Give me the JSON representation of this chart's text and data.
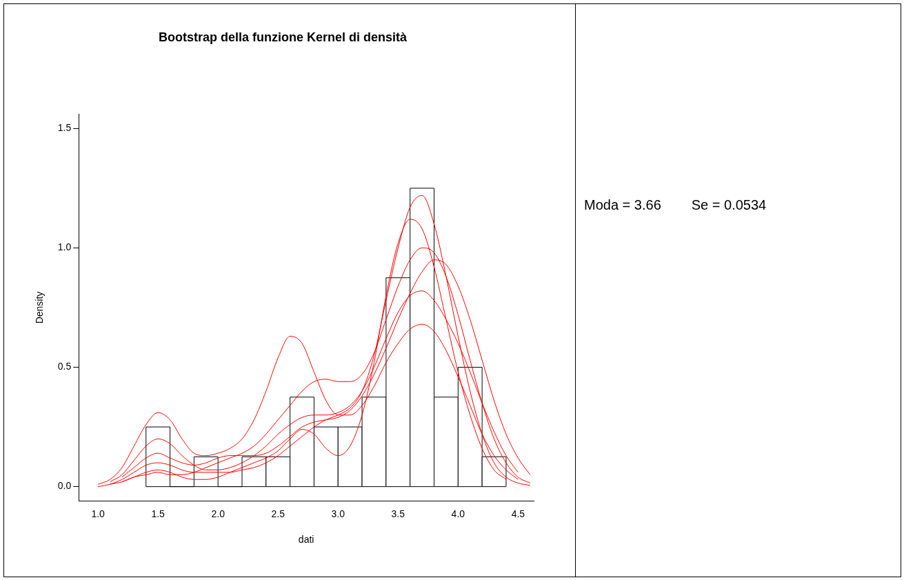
{
  "chart_data": {
    "type": "histogram",
    "title": "Bootstrap della funzione Kernel di densità",
    "xlabel": "dati",
    "ylabel": "Density",
    "bins": [
      1.4,
      1.6,
      1.8,
      2.0,
      2.2,
      2.4,
      2.6,
      2.8,
      3.0,
      3.2,
      3.4,
      3.6,
      3.8,
      4.0,
      4.2,
      4.4
    ],
    "values": [
      0.25,
      0,
      0.125,
      0,
      0.125,
      0.125,
      0.375,
      0.25,
      0.25,
      0.375,
      0.875,
      1.25,
      0.375,
      0.5,
      0.125
    ],
    "color": "#000000",
    "series": [
      {
        "type": "line",
        "color": "#ff0000",
        "x": [
          1.0,
          1.1,
          1.2,
          1.3,
          1.4,
          1.5,
          1.6,
          1.7,
          1.8,
          1.9,
          2.0,
          2.1,
          2.2,
          2.3,
          2.4,
          2.5,
          2.6,
          2.7,
          2.8,
          2.9,
          3.0,
          3.1,
          3.2,
          3.3,
          3.4,
          3.5,
          3.6,
          3.7,
          3.8,
          3.9,
          4.0,
          4.1,
          4.2,
          4.3,
          4.4,
          4.5,
          4.6
        ],
        "values": [
          0,
          0.01,
          0.03,
          0.06,
          0.09,
          0.1,
          0.09,
          0.07,
          0.06,
          0.06,
          0.06,
          0.06,
          0.07,
          0.08,
          0.1,
          0.13,
          0.17,
          0.21,
          0.25,
          0.28,
          0.3,
          0.33,
          0.4,
          0.55,
          0.78,
          1.0,
          1.17,
          1.22,
          1.1,
          0.88,
          0.63,
          0.4,
          0.22,
          0.1,
          0.04,
          0.015,
          0.005
        ]
      },
      {
        "type": "line",
        "color": "#ff0000",
        "x": [
          1.0,
          1.1,
          1.2,
          1.3,
          1.4,
          1.5,
          1.6,
          1.7,
          1.8,
          1.9,
          2.0,
          2.1,
          2.2,
          2.3,
          2.4,
          2.5,
          2.6,
          2.7,
          2.8,
          2.9,
          3.0,
          3.1,
          3.2,
          3.3,
          3.4,
          3.5,
          3.6,
          3.7,
          3.8,
          3.9,
          4.0,
          4.1,
          4.2,
          4.3,
          4.4,
          4.5
        ],
        "values": [
          0.01,
          0.03,
          0.08,
          0.17,
          0.26,
          0.31,
          0.28,
          0.2,
          0.14,
          0.13,
          0.14,
          0.16,
          0.2,
          0.28,
          0.4,
          0.54,
          0.63,
          0.6,
          0.48,
          0.36,
          0.3,
          0.3,
          0.34,
          0.42,
          0.52,
          0.6,
          0.66,
          0.68,
          0.65,
          0.57,
          0.46,
          0.34,
          0.22,
          0.13,
          0.07,
          0.03
        ]
      },
      {
        "type": "line",
        "color": "#ff0000",
        "x": [
          1.1,
          1.2,
          1.3,
          1.4,
          1.5,
          1.6,
          1.7,
          1.8,
          1.9,
          2.0,
          2.1,
          2.2,
          2.3,
          2.4,
          2.5,
          2.6,
          2.7,
          2.8,
          2.9,
          3.0,
          3.1,
          3.2,
          3.3,
          3.4,
          3.5,
          3.6,
          3.7,
          3.8,
          3.9,
          4.0,
          4.1,
          4.2,
          4.3,
          4.4,
          4.5,
          4.6
        ],
        "values": [
          0.01,
          0.02,
          0.04,
          0.05,
          0.06,
          0.05,
          0.05,
          0.06,
          0.08,
          0.1,
          0.12,
          0.14,
          0.17,
          0.22,
          0.28,
          0.34,
          0.4,
          0.44,
          0.45,
          0.44,
          0.44,
          0.47,
          0.56,
          0.7,
          0.84,
          0.95,
          1.0,
          0.98,
          0.88,
          0.72,
          0.53,
          0.35,
          0.2,
          0.1,
          0.04,
          0.015
        ]
      },
      {
        "type": "line",
        "color": "#ff0000",
        "x": [
          1.1,
          1.2,
          1.3,
          1.4,
          1.5,
          1.6,
          1.7,
          1.8,
          1.9,
          2.0,
          2.1,
          2.2,
          2.3,
          2.4,
          2.5,
          2.6,
          2.7,
          2.8,
          2.9,
          3.0,
          3.1,
          3.2,
          3.3,
          3.4,
          3.5,
          3.6,
          3.7,
          3.8,
          3.9,
          4.0,
          4.1,
          4.2,
          4.3,
          4.4,
          4.5
        ],
        "values": [
          0.02,
          0.05,
          0.11,
          0.17,
          0.2,
          0.18,
          0.13,
          0.09,
          0.07,
          0.07,
          0.08,
          0.1,
          0.13,
          0.17,
          0.22,
          0.26,
          0.29,
          0.3,
          0.3,
          0.31,
          0.34,
          0.4,
          0.5,
          0.62,
          0.73,
          0.8,
          0.82,
          0.78,
          0.7,
          0.6,
          0.48,
          0.35,
          0.23,
          0.13,
          0.06
        ]
      },
      {
        "type": "line",
        "color": "#ff0000",
        "x": [
          1.2,
          1.3,
          1.4,
          1.5,
          1.6,
          1.7,
          1.8,
          1.9,
          2.0,
          2.1,
          2.2,
          2.3,
          2.4,
          2.5,
          2.6,
          2.7,
          2.8,
          2.9,
          3.0,
          3.1,
          3.2,
          3.3,
          3.4,
          3.5,
          3.6,
          3.7,
          3.8,
          3.9,
          4.0,
          4.1,
          4.2,
          4.3,
          4.4
        ],
        "values": [
          0.02,
          0.04,
          0.06,
          0.07,
          0.06,
          0.04,
          0.03,
          0.03,
          0.04,
          0.06,
          0.08,
          0.1,
          0.12,
          0.15,
          0.2,
          0.24,
          0.22,
          0.16,
          0.13,
          0.17,
          0.3,
          0.52,
          0.8,
          1.02,
          1.12,
          1.08,
          0.92,
          0.7,
          0.48,
          0.3,
          0.16,
          0.07,
          0.03
        ]
      },
      {
        "type": "line",
        "color": "#ff0000",
        "x": [
          1.2,
          1.3,
          1.4,
          1.5,
          1.6,
          1.7,
          1.8,
          1.9,
          2.0,
          2.1,
          2.2,
          2.3,
          2.4,
          2.5,
          2.6,
          2.7,
          2.8,
          2.9,
          3.0,
          3.1,
          3.2,
          3.3,
          3.4,
          3.5,
          3.6,
          3.7,
          3.8,
          3.9,
          4.0,
          4.1,
          4.2,
          4.3,
          4.4,
          4.5,
          4.6
        ],
        "values": [
          0.04,
          0.08,
          0.12,
          0.14,
          0.12,
          0.1,
          0.09,
          0.1,
          0.12,
          0.13,
          0.13,
          0.13,
          0.14,
          0.17,
          0.21,
          0.25,
          0.27,
          0.28,
          0.29,
          0.32,
          0.38,
          0.47,
          0.58,
          0.7,
          0.81,
          0.9,
          0.95,
          0.93,
          0.84,
          0.7,
          0.53,
          0.36,
          0.22,
          0.12,
          0.05
        ]
      }
    ],
    "xlim": [
      0.84,
      4.63
    ],
    "ylim": [
      -0.06,
      1.56
    ],
    "xticks": [
      {
        "value": 1,
        "label": "1.0"
      },
      {
        "value": 1.5,
        "label": "1.5"
      },
      {
        "value": 2,
        "label": "2.0"
      },
      {
        "value": 2.5,
        "label": "2.5"
      },
      {
        "value": 3,
        "label": "3.0"
      },
      {
        "value": 3.5,
        "label": "3.5"
      },
      {
        "value": 4,
        "label": "4.0"
      },
      {
        "value": 4.5,
        "label": "4.5"
      }
    ],
    "yticks": [
      {
        "value": 0,
        "label": "0.0"
      },
      {
        "value": 0.5,
        "label": "0.5"
      },
      {
        "value": 1,
        "label": "1.0"
      },
      {
        "value": 1.5,
        "label": "1.5"
      }
    ],
    "annotations": [
      "Moda = 3.66",
      "Se = 0.0534"
    ]
  }
}
